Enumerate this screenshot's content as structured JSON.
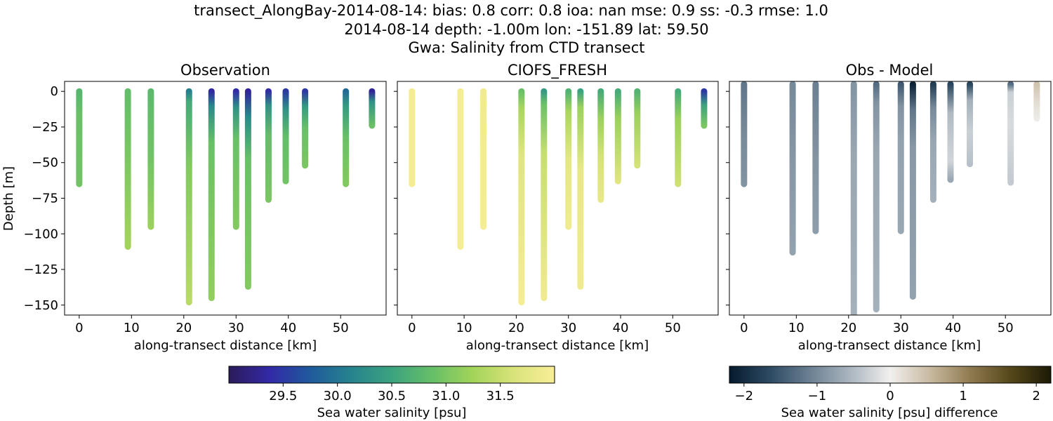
{
  "title_lines": [
    "transect_AlongBay-2014-08-14: bias: 0.8  corr: 0.8  ioa: nan  mse: 0.9  ss: -0.3  rmse: 1.0",
    "2014-08-14 depth: -1.00m lon: -151.89 lat: 59.50",
    "Gwa: Salinity from CTD transect"
  ],
  "chart_data": [
    {
      "type": "scatter",
      "title": "Observation",
      "xlabel": "along-transect distance [km]",
      "ylabel": "Depth [m]",
      "xlim": [
        -2.8,
        58.7
      ],
      "ylim": [
        -157,
        7
      ],
      "xticks": [
        0,
        10,
        20,
        30,
        40,
        50
      ],
      "yticks": [
        0,
        -25,
        -50,
        -75,
        -100,
        -125,
        -150
      ],
      "ytick_labels": [
        "0",
        "−25",
        "−50",
        "−75",
        "−100",
        "−125",
        "−150"
      ],
      "colorscale": "salinity",
      "casts": [
        {
          "x": 0.0,
          "bottom": -65,
          "stops": [
            [
              0,
              30.75
            ],
            [
              0.25,
              30.9
            ],
            [
              1,
              30.95
            ]
          ]
        },
        {
          "x": 9.3,
          "bottom": -109,
          "stops": [
            [
              0,
              30.85
            ],
            [
              0.4,
              31.0
            ],
            [
              1,
              31.25
            ]
          ]
        },
        {
          "x": 13.7,
          "bottom": -95,
          "stops": [
            [
              0,
              30.8
            ],
            [
              0.5,
              30.95
            ],
            [
              1,
              31.2
            ]
          ]
        },
        {
          "x": 21.0,
          "bottom": -148,
          "stops": [
            [
              0,
              30.1
            ],
            [
              0.05,
              30.6
            ],
            [
              0.35,
              31.05
            ],
            [
              1,
              31.4
            ]
          ]
        },
        {
          "x": 25.3,
          "bottom": -145,
          "stops": [
            [
              0,
              29.35
            ],
            [
              0.07,
              30.2
            ],
            [
              0.25,
              30.9
            ],
            [
              1,
              31.15
            ]
          ]
        },
        {
          "x": 30.0,
          "bottom": -95,
          "stops": [
            [
              0,
              29.4
            ],
            [
              0.12,
              30.3
            ],
            [
              0.35,
              30.9
            ],
            [
              1,
              31.05
            ]
          ]
        },
        {
          "x": 32.3,
          "bottom": -137,
          "stops": [
            [
              0,
              29.3
            ],
            [
              0.13,
              30.2
            ],
            [
              0.35,
              30.9
            ],
            [
              1,
              31.05
            ]
          ]
        },
        {
          "x": 36.2,
          "bottom": -76,
          "stops": [
            [
              0,
              29.4
            ],
            [
              0.13,
              30.3
            ],
            [
              0.4,
              30.85
            ],
            [
              1,
              31.0
            ]
          ]
        },
        {
          "x": 39.5,
          "bottom": -63,
          "stops": [
            [
              0,
              29.5
            ],
            [
              0.2,
              30.3
            ],
            [
              0.5,
              30.85
            ],
            [
              1,
              30.95
            ]
          ]
        },
        {
          "x": 43.2,
          "bottom": -52,
          "stops": [
            [
              0,
              29.5
            ],
            [
              0.2,
              30.4
            ],
            [
              0.5,
              30.9
            ],
            [
              1,
              31.0
            ]
          ]
        },
        {
          "x": 51.0,
          "bottom": -65,
          "stops": [
            [
              0,
              29.9
            ],
            [
              0.15,
              30.4
            ],
            [
              0.5,
              30.9
            ],
            [
              1,
              31.05
            ]
          ]
        },
        {
          "x": 56.0,
          "bottom": -24,
          "stops": [
            [
              0,
              29.3
            ],
            [
              0.3,
              30.3
            ],
            [
              1,
              30.9
            ]
          ]
        }
      ]
    },
    {
      "type": "scatter",
      "title": "CIOFS_FRESH",
      "xlabel": "along-transect distance [km]",
      "xlim": [
        -2.8,
        58.7
      ],
      "ylim": [
        -157,
        7
      ],
      "xticks": [
        0,
        10,
        20,
        30,
        40,
        50
      ],
      "yticks": [
        0,
        -25,
        -50,
        -75,
        -100,
        -125,
        -150
      ],
      "colorscale": "salinity",
      "casts": [
        {
          "x": 0.0,
          "bottom": -65,
          "stops": [
            [
              0,
              31.95
            ],
            [
              1,
              31.95
            ]
          ]
        },
        {
          "x": 9.3,
          "bottom": -109,
          "stops": [
            [
              0,
              31.95
            ],
            [
              1,
              31.95
            ]
          ]
        },
        {
          "x": 13.7,
          "bottom": -95,
          "stops": [
            [
              0,
              31.9
            ],
            [
              1,
              31.95
            ]
          ]
        },
        {
          "x": 21.0,
          "bottom": -148,
          "stops": [
            [
              0,
              30.9
            ],
            [
              0.08,
              31.3
            ],
            [
              0.3,
              31.7
            ],
            [
              1,
              31.95
            ]
          ]
        },
        {
          "x": 25.3,
          "bottom": -145,
          "stops": [
            [
              0,
              30.4
            ],
            [
              0.06,
              30.9
            ],
            [
              0.3,
              31.5
            ],
            [
              1,
              31.9
            ]
          ]
        },
        {
          "x": 30.0,
          "bottom": -95,
          "stops": [
            [
              0,
              30.7
            ],
            [
              0.15,
              31.3
            ],
            [
              0.5,
              31.75
            ],
            [
              1,
              31.9
            ]
          ]
        },
        {
          "x": 32.3,
          "bottom": -137,
          "stops": [
            [
              0,
              30.5
            ],
            [
              0.08,
              31.2
            ],
            [
              0.4,
              31.8
            ],
            [
              1,
              31.9
            ]
          ]
        },
        {
          "x": 36.2,
          "bottom": -76,
          "stops": [
            [
              0,
              30.6
            ],
            [
              0.25,
              31.2
            ],
            [
              0.6,
              31.6
            ],
            [
              1,
              31.8
            ]
          ]
        },
        {
          "x": 39.5,
          "bottom": -63,
          "stops": [
            [
              0,
              30.6
            ],
            [
              0.3,
              31.2
            ],
            [
              1,
              31.7
            ]
          ]
        },
        {
          "x": 43.2,
          "bottom": -52,
          "stops": [
            [
              0,
              30.7
            ],
            [
              0.3,
              31.2
            ],
            [
              1,
              31.6
            ]
          ]
        },
        {
          "x": 51.0,
          "bottom": -65,
          "stops": [
            [
              0,
              30.6
            ],
            [
              0.3,
              31.2
            ],
            [
              1,
              31.55
            ]
          ]
        },
        {
          "x": 56.0,
          "bottom": -24,
          "stops": [
            [
              0,
              29.5
            ],
            [
              0.4,
              30.5
            ],
            [
              1,
              31.0
            ]
          ]
        }
      ]
    },
    {
      "type": "scatter",
      "title": "Obs - Model",
      "xlabel": "along-transect distance [km]",
      "xlim": [
        -2.8,
        58.7
      ],
      "ylim": [
        -157,
        7
      ],
      "xticks": [
        0,
        10,
        20,
        30,
        40,
        50
      ],
      "yticks": [
        0,
        -25,
        -50,
        -75,
        -100,
        -125,
        -150
      ],
      "colorscale": "difference",
      "casts": [
        {
          "x": 0.0,
          "top": 5,
          "bottom": -65,
          "stops": [
            [
              0,
              -1.2
            ],
            [
              0.5,
              -1.0
            ],
            [
              1,
              -0.9
            ]
          ]
        },
        {
          "x": 9.3,
          "top": 5,
          "bottom": -113,
          "stops": [
            [
              0,
              -1.0
            ],
            [
              0.5,
              -0.85
            ],
            [
              1,
              -0.75
            ]
          ]
        },
        {
          "x": 13.7,
          "top": 5,
          "bottom": -98,
          "stops": [
            [
              0,
              -1.1
            ],
            [
              0.5,
              -0.9
            ],
            [
              1,
              -0.8
            ]
          ]
        },
        {
          "x": 21.0,
          "top": 5,
          "bottom": -157,
          "stops": [
            [
              0,
              -0.9
            ],
            [
              0.3,
              -0.7
            ],
            [
              1,
              -0.6
            ]
          ]
        },
        {
          "x": 25.3,
          "top": 5,
          "bottom": -153,
          "stops": [
            [
              0,
              -1.3
            ],
            [
              0.08,
              -0.9
            ],
            [
              0.3,
              -0.7
            ],
            [
              1,
              -0.6
            ]
          ]
        },
        {
          "x": 30.0,
          "top": 5,
          "bottom": -98,
          "stops": [
            [
              0,
              -1.5
            ],
            [
              0.15,
              -0.9
            ],
            [
              0.4,
              -0.75
            ],
            [
              1,
              -0.7
            ]
          ]
        },
        {
          "x": 32.3,
          "top": 5,
          "bottom": -144,
          "stops": [
            [
              0,
              -2.1
            ],
            [
              0.12,
              -1.2
            ],
            [
              0.3,
              -0.85
            ],
            [
              1,
              -0.75
            ]
          ]
        },
        {
          "x": 36.2,
          "top": 5,
          "bottom": -76,
          "stops": [
            [
              0,
              -1.8
            ],
            [
              0.2,
              -1.0
            ],
            [
              0.5,
              -0.7
            ],
            [
              1,
              -0.6
            ]
          ]
        },
        {
          "x": 39.5,
          "top": 5,
          "bottom": -62,
          "stops": [
            [
              0,
              -1.7
            ],
            [
              0.3,
              -0.5
            ],
            [
              0.8,
              -0.25
            ],
            [
              1,
              -0.7
            ]
          ]
        },
        {
          "x": 43.2,
          "top": 5,
          "bottom": -51,
          "stops": [
            [
              0,
              -1.7
            ],
            [
              0.2,
              -0.6
            ],
            [
              0.6,
              -0.3
            ],
            [
              1,
              -0.45
            ]
          ]
        },
        {
          "x": 51.0,
          "top": 5,
          "bottom": -64,
          "stops": [
            [
              0,
              -1.3
            ],
            [
              0.08,
              -0.3
            ],
            [
              0.4,
              -0.2
            ],
            [
              1,
              -0.35
            ]
          ]
        },
        {
          "x": 56.0,
          "top": 5,
          "bottom": -19,
          "stops": [
            [
              0,
              0.45
            ],
            [
              0.5,
              0.2
            ],
            [
              1,
              0.05
            ]
          ]
        }
      ]
    }
  ],
  "colorbars": [
    {
      "label": "Sea water salinity [psu]",
      "range": [
        29.0,
        32.0
      ],
      "ticks": [
        29.5,
        30.0,
        30.5,
        31.0,
        31.5
      ],
      "tick_labels": [
        "29.5",
        "30.0",
        "30.5",
        "31.0",
        "31.5"
      ],
      "colormap": [
        "#2c1b5a",
        "#3229a6",
        "#1f5a9c",
        "#26838d",
        "#3ba37f",
        "#66bf68",
        "#a3d45a",
        "#d9e37a",
        "#f9ee98"
      ]
    },
    {
      "label": "Sea water salinity [psu] difference",
      "range": [
        -2.2,
        2.2
      ],
      "ticks": [
        -2,
        -1,
        0,
        1,
        2
      ],
      "tick_labels": [
        "−2",
        "−1",
        "0",
        "1",
        "2"
      ],
      "colormap": [
        "#051a2c",
        "#2d4a63",
        "#6b8092",
        "#aab5bf",
        "#f1f0ee",
        "#c8b9a0",
        "#8f7a4f",
        "#554719",
        "#1c1a06"
      ]
    }
  ]
}
